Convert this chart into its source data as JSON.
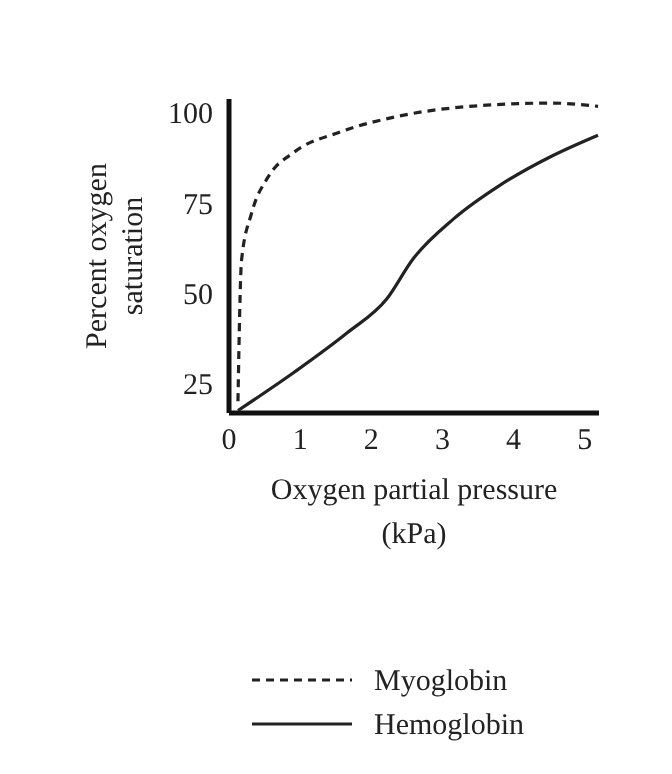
{
  "chart_data": {
    "type": "line",
    "xlabel": "Oxygen partial pressure (kPa)",
    "ylabel": "Percent oxygen saturation",
    "xlim": [
      0,
      5.2
    ],
    "ylim": [
      17,
      104
    ],
    "xticks": [
      0,
      1,
      2,
      3,
      4,
      5
    ],
    "yticks": [
      25,
      50,
      75,
      100
    ],
    "grid": false,
    "legend": "bottom",
    "marker": "none",
    "series": [
      {
        "name": "Myoglobin",
        "color": "#222222",
        "line_style": "dashed",
        "x": [
          0.14,
          0.19,
          0.33,
          0.56,
          0.93,
          1.58,
          2.51,
          3.63,
          4.55,
          5.2
        ],
        "values": [
          20,
          59,
          72,
          82,
          89,
          94.6,
          99.4,
          102,
          102.6,
          101.7
        ]
      },
      {
        "name": "Hemoglobin",
        "color": "#222222",
        "line_style": "solid",
        "x": [
          0.14,
          0.93,
          1.68,
          2.23,
          2.6,
          3.17,
          3.82,
          4.56,
          5.2
        ],
        "values": [
          17.4,
          28,
          39,
          48.3,
          59.4,
          70.5,
          79.8,
          88,
          93.7
        ]
      }
    ]
  }
}
